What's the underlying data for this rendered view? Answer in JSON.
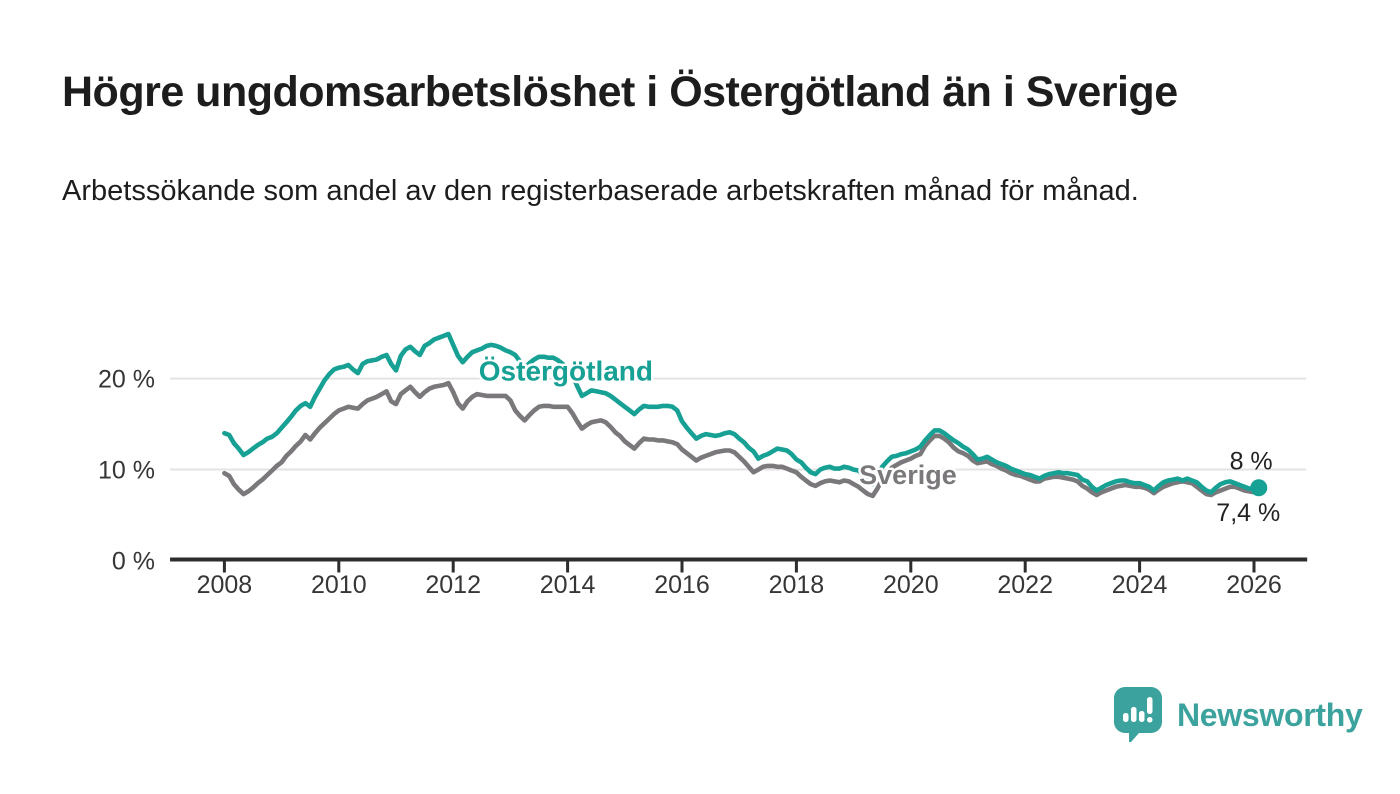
{
  "header": {
    "title": "Högre ungdomsarbetslöshet i Östergötland än i Sverige",
    "subtitle": "Arbetssökande som andel av den registerbaserade arbetskraften månad för månad."
  },
  "footer": {
    "brand": "Newsworthy",
    "logo_icon": "speech-bubble-bar-chart-icon",
    "brand_color": "#3ca29d"
  },
  "chart_data": {
    "type": "line",
    "title": "Högre ungdomsarbetslöshet i Östergötland än i Sverige",
    "subtitle": "Arbetssökande som andel av den registerbaserade arbetskraften månad för månad.",
    "unit": "%",
    "grid": true,
    "legend_position": "inline-labels",
    "x_axis": {
      "range": [
        2007.05,
        2027.0
      ],
      "ticks": [
        2008,
        2010,
        2012,
        2014,
        2016,
        2018,
        2020,
        2022,
        2024,
        2026
      ],
      "tick_labels": [
        "2008",
        "2010",
        "2012",
        "2014",
        "2016",
        "2018",
        "2020",
        "2022",
        "2024",
        "2026"
      ]
    },
    "y_axis": {
      "range": [
        0,
        26.5
      ],
      "ticks": [
        {
          "value": 0,
          "label": "0 %"
        },
        {
          "value": 10,
          "label": "10 %"
        },
        {
          "value": 20,
          "label": "20 %"
        }
      ],
      "gridlines": [
        10,
        20
      ]
    },
    "series": [
      {
        "name": "Sverige",
        "slug": "sverige",
        "color": "#7a787b",
        "start_year": 2008,
        "points_per_year": 12,
        "inline_label": {
          "year": 2019.95,
          "pct": 9.4
        },
        "end_label": "7,4 %",
        "end_label_pos": {
          "year": 2025.9,
          "pct": 5.2
        },
        "end_dot": false,
        "values": [
          9.6,
          9.3,
          8.4,
          7.8,
          7.3,
          7.6,
          8.0,
          8.5,
          8.9,
          9.4,
          9.9,
          10.4,
          10.8,
          11.5,
          12.0,
          12.6,
          13.1,
          13.8,
          13.3,
          14.0,
          14.6,
          15.1,
          15.6,
          16.1,
          16.5,
          16.7,
          16.9,
          16.8,
          16.7,
          17.2,
          17.6,
          17.8,
          18.0,
          18.3,
          18.6,
          17.5,
          17.2,
          18.3,
          18.7,
          19.1,
          18.5,
          18.0,
          18.5,
          18.9,
          19.1,
          19.2,
          19.3,
          19.5,
          18.5,
          17.3,
          16.7,
          17.5,
          18.0,
          18.3,
          18.2,
          18.1,
          18.1,
          18.1,
          18.1,
          18.1,
          17.6,
          16.5,
          15.9,
          15.4,
          16.0,
          16.5,
          16.9,
          17.0,
          17.0,
          16.9,
          16.9,
          16.9,
          16.9,
          16.2,
          15.3,
          14.5,
          14.9,
          15.2,
          15.3,
          15.4,
          15.2,
          14.7,
          14.1,
          13.7,
          13.1,
          12.7,
          12.3,
          12.9,
          13.4,
          13.3,
          13.3,
          13.2,
          13.2,
          13.1,
          13.0,
          12.8,
          12.2,
          11.8,
          11.4,
          11.0,
          11.3,
          11.5,
          11.7,
          11.9,
          12.0,
          12.1,
          12.1,
          11.9,
          11.4,
          10.9,
          10.3,
          9.7,
          10.0,
          10.3,
          10.4,
          10.4,
          10.3,
          10.3,
          10.1,
          9.9,
          9.7,
          9.2,
          8.8,
          8.4,
          8.2,
          8.5,
          8.7,
          8.8,
          8.7,
          8.6,
          8.8,
          8.7,
          8.4,
          8.1,
          7.7,
          7.3,
          7.1,
          7.9,
          8.9,
          9.6,
          10.2,
          10.5,
          10.8,
          11.0,
          11.2,
          11.5,
          11.7,
          12.6,
          13.2,
          13.7,
          13.7,
          13.4,
          13.0,
          12.4,
          12.0,
          11.8,
          11.5,
          11.0,
          10.7,
          10.8,
          10.9,
          10.6,
          10.4,
          10.1,
          9.9,
          9.6,
          9.4,
          9.3,
          9.1,
          8.9,
          8.7,
          8.7,
          9.0,
          9.1,
          9.2,
          9.2,
          9.1,
          9.0,
          8.9,
          8.7,
          8.2,
          7.9,
          7.5,
          7.2,
          7.5,
          7.7,
          7.9,
          8.1,
          8.2,
          8.3,
          8.2,
          8.1,
          8.1,
          8.0,
          7.8,
          7.4,
          7.8,
          8.1,
          8.3,
          8.5,
          8.6,
          8.7,
          8.6,
          8.5,
          8.1,
          7.7,
          7.3,
          7.2,
          7.5,
          7.7,
          7.9,
          8.1,
          8.1,
          7.9,
          7.7,
          7.6,
          7.5,
          7.4
        ]
      },
      {
        "name": "Östergötland",
        "slug": "ostergotland",
        "color": "#17a094",
        "start_year": 2008,
        "points_per_year": 12,
        "inline_label": {
          "year": 2013.97,
          "pct": 20.8
        },
        "end_label": "8 %",
        "end_label_pos": {
          "year": 2025.95,
          "pct": 10.9
        },
        "end_dot": true,
        "values": [
          14.0,
          13.8,
          12.9,
          12.3,
          11.6,
          11.9,
          12.3,
          12.7,
          13.0,
          13.4,
          13.6,
          14.0,
          14.6,
          15.2,
          15.8,
          16.5,
          17.0,
          17.3,
          16.9,
          18.0,
          18.9,
          19.8,
          20.5,
          21.0,
          21.2,
          21.3,
          21.5,
          21.0,
          20.6,
          21.6,
          21.9,
          22.0,
          22.1,
          22.4,
          22.6,
          21.6,
          20.9,
          22.5,
          23.2,
          23.5,
          23.0,
          22.6,
          23.6,
          23.9,
          24.3,
          24.5,
          24.7,
          24.9,
          23.7,
          22.5,
          21.8,
          22.4,
          22.9,
          23.1,
          23.3,
          23.6,
          23.7,
          23.6,
          23.4,
          23.1,
          22.9,
          22.6,
          21.9,
          21.2,
          21.7,
          22.1,
          22.4,
          22.4,
          22.3,
          22.3,
          22.0,
          21.6,
          21.0,
          20.4,
          19.2,
          18.1,
          18.4,
          18.7,
          18.6,
          18.5,
          18.4,
          18.1,
          17.7,
          17.3,
          16.9,
          16.5,
          16.1,
          16.6,
          17.0,
          16.9,
          16.9,
          16.9,
          17.0,
          17.0,
          16.9,
          16.5,
          15.3,
          14.6,
          14.0,
          13.4,
          13.7,
          13.9,
          13.8,
          13.7,
          13.8,
          14.0,
          14.1,
          13.9,
          13.4,
          13.0,
          12.4,
          12.0,
          11.2,
          11.5,
          11.7,
          12.0,
          12.3,
          12.2,
          12.1,
          11.7,
          11.1,
          10.8,
          10.2,
          9.7,
          9.5,
          10.0,
          10.2,
          10.3,
          10.1,
          10.1,
          10.3,
          10.2,
          10.0,
          9.9,
          9.4,
          8.8,
          8.4,
          9.2,
          10.3,
          10.9,
          11.4,
          11.5,
          11.7,
          11.8,
          12.0,
          12.2,
          12.5,
          13.2,
          13.8,
          14.3,
          14.3,
          14.0,
          13.6,
          13.2,
          12.9,
          12.5,
          12.2,
          11.7,
          11.1,
          11.2,
          11.4,
          11.1,
          10.8,
          10.6,
          10.4,
          10.1,
          9.9,
          9.7,
          9.5,
          9.4,
          9.2,
          9.0,
          9.3,
          9.5,
          9.6,
          9.7,
          9.6,
          9.6,
          9.5,
          9.4,
          8.9,
          8.7,
          8.1,
          7.7,
          8.0,
          8.3,
          8.5,
          8.7,
          8.8,
          8.8,
          8.6,
          8.5,
          8.5,
          8.3,
          8.1,
          7.7,
          8.2,
          8.6,
          8.8,
          8.9,
          9.0,
          8.8,
          9.0,
          8.8,
          8.6,
          8.1,
          7.7,
          7.5,
          8.0,
          8.4,
          8.6,
          8.7,
          8.5,
          8.3,
          8.1,
          7.9,
          7.9,
          8.0
        ]
      }
    ]
  }
}
